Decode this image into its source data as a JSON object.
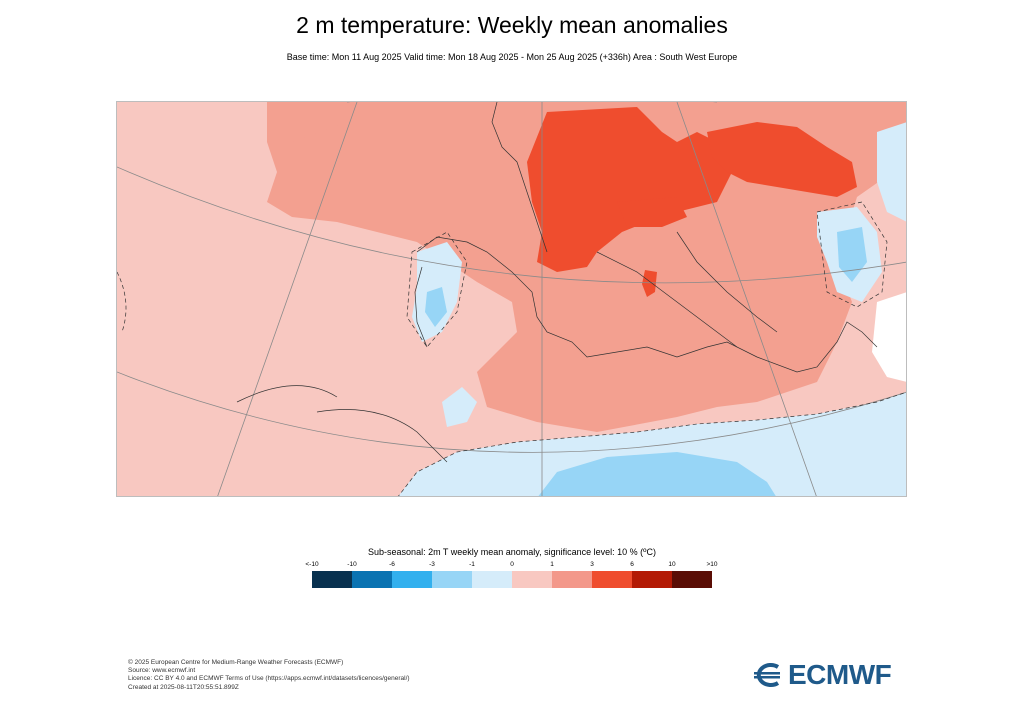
{
  "header": {
    "title": "2 m temperature: Weekly mean anomalies",
    "subtitle": "Base time: Mon 11 Aug 2025 Valid time: Mon 18 Aug 2025 - Mon 25 Aug 2025 (+336h) Area : South West Europe"
  },
  "map": {
    "region": "South West Europe",
    "dominant_category": "1 to 3"
  },
  "legend": {
    "title": "Sub-seasonal: 2m T weekly mean anomaly, significance level: 10 % (ºC)",
    "ticks": [
      "<-10",
      "-10",
      "-6",
      "-3",
      "-1",
      "0",
      "1",
      "3",
      "6",
      "10",
      ">10"
    ],
    "colors": [
      "#08314f",
      "#0a73b2",
      "#32b0ee",
      "#97d5f6",
      "#d5ecfa",
      "#f8c8c1",
      "#f3988a",
      "#ef4d2e",
      "#b31a05",
      "#5a0d05"
    ]
  },
  "credits": {
    "line1": "© 2025 European Centre for Medium-Range Weather Forecasts (ECMWF)",
    "line2": "Source: www.ecmwf.int",
    "line3": "Licence: CC BY 4.0 and ECMWF Terms of Use (https://apps.ecmwf.int/datasets/licences/general/)",
    "line4": "Created at 2025-08-11T20:55:51.899Z"
  },
  "logo": {
    "text": "ECMWF",
    "color": "#1f5a8a"
  }
}
